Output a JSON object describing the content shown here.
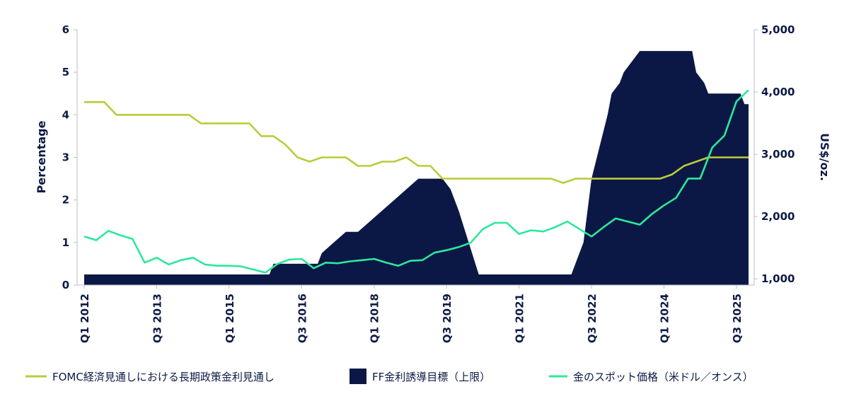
{
  "colors": {
    "navy": "#0b1845",
    "olive": "#bccb3a",
    "mint": "#2ee89a"
  },
  "chart_data": {
    "type": "area",
    "title": "",
    "y_left": {
      "label": "Percentage",
      "range": [
        0,
        6
      ],
      "ticks": [
        "0",
        "1",
        "2",
        "3",
        "4",
        "5",
        "6"
      ]
    },
    "y_right": {
      "label": "US$/oz.",
      "range": [
        900,
        5000
      ],
      "ticks": [
        "1,000",
        "2,000",
        "3,000",
        "4,000",
        "5,000"
      ]
    },
    "x_ticks": [
      "Q1 2012",
      "Q3 2013",
      "Q1 2015",
      "Q3 2016",
      "Q1 2018",
      "Q3 2019",
      "Q1 2021",
      "Q3 2022",
      "Q1 2024",
      "Q3 2025"
    ],
    "x_domain": [
      "2012-01",
      "2025-10"
    ],
    "grid": false,
    "legend_position": "bottom",
    "series": [
      {
        "name": "FOMC経済見通しにおける長期政策金利見通し",
        "type": "line",
        "axis": "left",
        "points": [
          [
            "2012-01",
            4.3
          ],
          [
            "2012-04",
            4.3
          ],
          [
            "2012-06",
            4.3
          ],
          [
            "2012-09",
            4.0
          ],
          [
            "2012-12",
            4.0
          ],
          [
            "2013-03",
            4.0
          ],
          [
            "2013-06",
            4.0
          ],
          [
            "2013-09",
            4.0
          ],
          [
            "2013-12",
            4.0
          ],
          [
            "2014-03",
            4.0
          ],
          [
            "2014-06",
            3.8
          ],
          [
            "2014-09",
            3.8
          ],
          [
            "2014-12",
            3.8
          ],
          [
            "2015-03",
            3.8
          ],
          [
            "2015-06",
            3.8
          ],
          [
            "2015-09",
            3.5
          ],
          [
            "2015-12",
            3.5
          ],
          [
            "2016-03",
            3.3
          ],
          [
            "2016-06",
            3.0
          ],
          [
            "2016-09",
            2.9
          ],
          [
            "2016-12",
            3.0
          ],
          [
            "2017-03",
            3.0
          ],
          [
            "2017-06",
            3.0
          ],
          [
            "2017-09",
            2.8
          ],
          [
            "2017-12",
            2.8
          ],
          [
            "2018-03",
            2.9
          ],
          [
            "2018-06",
            2.9
          ],
          [
            "2018-09",
            3.0
          ],
          [
            "2018-12",
            2.8
          ],
          [
            "2019-03",
            2.8
          ],
          [
            "2019-06",
            2.5
          ],
          [
            "2019-09",
            2.5
          ],
          [
            "2019-12",
            2.5
          ],
          [
            "2020-03",
            2.5
          ],
          [
            "2020-06",
            2.5
          ],
          [
            "2020-09",
            2.5
          ],
          [
            "2020-12",
            2.5
          ],
          [
            "2021-03",
            2.5
          ],
          [
            "2021-06",
            2.5
          ],
          [
            "2021-09",
            2.5
          ],
          [
            "2021-12",
            2.4
          ],
          [
            "2022-03",
            2.5
          ],
          [
            "2022-06",
            2.5
          ],
          [
            "2022-09",
            2.5
          ],
          [
            "2022-12",
            2.5
          ],
          [
            "2023-03",
            2.5
          ],
          [
            "2023-06",
            2.5
          ],
          [
            "2023-09",
            2.5
          ],
          [
            "2023-12",
            2.5
          ],
          [
            "2024-03",
            2.6
          ],
          [
            "2024-06",
            2.8
          ],
          [
            "2024-09",
            2.9
          ],
          [
            "2024-12",
            3.0
          ],
          [
            "2025-03",
            3.0
          ],
          [
            "2025-06",
            3.0
          ],
          [
            "2025-10",
            3.0
          ]
        ]
      },
      {
        "name": "FF金利誘導目標（上限）",
        "type": "area",
        "axis": "left",
        "points": [
          [
            "2012-01",
            0.25
          ],
          [
            "2015-11",
            0.25
          ],
          [
            "2015-12",
            0.5
          ],
          [
            "2016-11",
            0.5
          ],
          [
            "2016-12",
            0.75
          ],
          [
            "2017-03",
            1.0
          ],
          [
            "2017-06",
            1.25
          ],
          [
            "2017-09",
            1.25
          ],
          [
            "2017-12",
            1.5
          ],
          [
            "2018-03",
            1.75
          ],
          [
            "2018-06",
            2.0
          ],
          [
            "2018-09",
            2.25
          ],
          [
            "2018-12",
            2.5
          ],
          [
            "2019-06",
            2.5
          ],
          [
            "2019-08",
            2.25
          ],
          [
            "2019-09",
            2.0
          ],
          [
            "2019-10",
            1.75
          ],
          [
            "2020-03",
            0.25
          ],
          [
            "2022-02",
            0.25
          ],
          [
            "2022-03",
            0.5
          ],
          [
            "2022-05",
            1.0
          ],
          [
            "2022-06",
            1.75
          ],
          [
            "2022-07",
            2.5
          ],
          [
            "2022-09",
            3.25
          ],
          [
            "2022-11",
            4.0
          ],
          [
            "2022-12",
            4.5
          ],
          [
            "2023-02",
            4.75
          ],
          [
            "2023-03",
            5.0
          ],
          [
            "2023-05",
            5.25
          ],
          [
            "2023-07",
            5.5
          ],
          [
            "2024-08",
            5.5
          ],
          [
            "2024-09",
            5.0
          ],
          [
            "2024-11",
            4.75
          ],
          [
            "2024-12",
            4.5
          ],
          [
            "2025-08",
            4.5
          ],
          [
            "2025-09",
            4.25
          ],
          [
            "2025-10",
            4.25
          ]
        ]
      },
      {
        "name": "金のスポット価格（米ドル／オンス）",
        "type": "line",
        "axis": "right",
        "points": [
          [
            "2012-01",
            1680
          ],
          [
            "2012-04",
            1620
          ],
          [
            "2012-07",
            1770
          ],
          [
            "2012-10",
            1700
          ],
          [
            "2013-01",
            1640
          ],
          [
            "2013-04",
            1260
          ],
          [
            "2013-07",
            1340
          ],
          [
            "2013-10",
            1230
          ],
          [
            "2014-01",
            1300
          ],
          [
            "2014-04",
            1340
          ],
          [
            "2014-07",
            1230
          ],
          [
            "2014-10",
            1210
          ],
          [
            "2015-01",
            1210
          ],
          [
            "2015-04",
            1200
          ],
          [
            "2015-07",
            1150
          ],
          [
            "2015-10",
            1100
          ],
          [
            "2016-01",
            1240
          ],
          [
            "2016-04",
            1310
          ],
          [
            "2016-07",
            1320
          ],
          [
            "2016-10",
            1170
          ],
          [
            "2017-01",
            1260
          ],
          [
            "2017-04",
            1250
          ],
          [
            "2017-07",
            1280
          ],
          [
            "2017-10",
            1300
          ],
          [
            "2018-01",
            1320
          ],
          [
            "2018-04",
            1260
          ],
          [
            "2018-07",
            1210
          ],
          [
            "2018-10",
            1290
          ],
          [
            "2019-01",
            1300
          ],
          [
            "2019-04",
            1420
          ],
          [
            "2019-07",
            1460
          ],
          [
            "2019-10",
            1510
          ],
          [
            "2020-01",
            1580
          ],
          [
            "2020-04",
            1800
          ],
          [
            "2020-07",
            1900
          ],
          [
            "2020-10",
            1900
          ],
          [
            "2021-01",
            1720
          ],
          [
            "2021-04",
            1780
          ],
          [
            "2021-07",
            1760
          ],
          [
            "2021-10",
            1830
          ],
          [
            "2022-01",
            1920
          ],
          [
            "2022-04",
            1800
          ],
          [
            "2022-07",
            1680
          ],
          [
            "2022-10",
            1830
          ],
          [
            "2023-01",
            1970
          ],
          [
            "2023-04",
            1920
          ],
          [
            "2023-07",
            1870
          ],
          [
            "2023-10",
            2040
          ],
          [
            "2024-01",
            2180
          ],
          [
            "2024-04",
            2300
          ],
          [
            "2024-07",
            2610
          ],
          [
            "2024-10",
            2610
          ],
          [
            "2025-01",
            3110
          ],
          [
            "2025-04",
            3300
          ],
          [
            "2025-07",
            3850
          ],
          [
            "2025-10",
            4030
          ]
        ]
      }
    ]
  },
  "legend": [
    {
      "key": "fomc",
      "label": "FOMC経済見通しにおける長期政策金利見通し"
    },
    {
      "key": "ff",
      "label": "FF金利誘導目標（上限）"
    },
    {
      "key": "gold",
      "label": "金のスポット価格（米ドル／オンス）"
    }
  ]
}
